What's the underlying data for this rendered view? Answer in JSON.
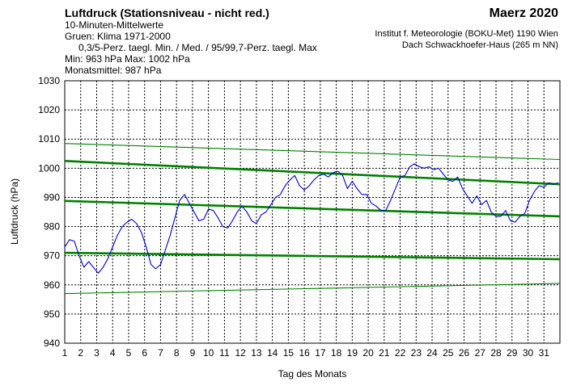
{
  "header": {
    "title": "Luftdruck (Stationsniveau - nicht red.)",
    "month": "Maerz 2020",
    "line2": "10-Minuten-Mittelwerte",
    "line3": "Gruen: Klima 1971-2000",
    "line4": "0,3/5-Perz. taegl. Min. / Med. / 95/99,7-Perz. taegl. Max",
    "minmax": "Min:  963 hPa   Max: 1002 hPa",
    "monthly_mean": "Monatsmittel:  987 hPa",
    "institute_line1": "Institut f. Meteorologie (BOKU-Met) 1190 Wien",
    "institute_line2": "Dach Schwackhoefer-Haus (265 m NN)"
  },
  "chart_data": {
    "type": "line",
    "xlabel": "Tag des Monats",
    "ylabel": "Luftdruck (hPa)",
    "xlim": [
      1,
      32
    ],
    "ylim": [
      940,
      1030
    ],
    "x_ticks": [
      "1",
      "2",
      "3",
      "4",
      "5",
      "6",
      "7",
      "8",
      "9",
      "10",
      "11",
      "12",
      "13",
      "14",
      "15",
      "16",
      "17",
      "18",
      "19",
      "20",
      "21",
      "22",
      "23",
      "24",
      "25",
      "26",
      "27",
      "28",
      "29",
      "30",
      "31"
    ],
    "y_ticks": [
      940,
      950,
      960,
      970,
      980,
      990,
      1000,
      1010,
      1020,
      1030
    ],
    "grid": true,
    "colors": {
      "measured": "#0000c0",
      "climate": "#008000"
    },
    "climate_series": [
      {
        "x": [
          1,
          32
        ],
        "y": [
          1008.5,
          1003.0
        ],
        "width": "thin"
      },
      {
        "x": [
          1,
          32
        ],
        "y": [
          1002.5,
          994.5
        ],
        "width": "thick"
      },
      {
        "x": [
          1,
          32
        ],
        "y": [
          988.8,
          983.5
        ],
        "width": "thick"
      },
      {
        "x": [
          1,
          32
        ],
        "y": [
          971.0,
          968.8
        ],
        "width": "thick"
      },
      {
        "x": [
          1,
          32
        ],
        "y": [
          957.0,
          960.5
        ],
        "width": "thin"
      }
    ],
    "measured_series": {
      "x": [
        1.0,
        1.3,
        1.6,
        1.9,
        2.2,
        2.5,
        2.8,
        3.1,
        3.4,
        3.7,
        4.0,
        4.3,
        4.6,
        4.9,
        5.2,
        5.5,
        5.8,
        6.1,
        6.4,
        6.7,
        7.0,
        7.3,
        7.6,
        7.9,
        8.2,
        8.5,
        8.8,
        9.1,
        9.4,
        9.7,
        10.0,
        10.3,
        10.6,
        10.9,
        11.2,
        11.5,
        11.8,
        12.1,
        12.4,
        12.7,
        13.0,
        13.3,
        13.6,
        13.9,
        14.2,
        14.5,
        14.8,
        15.1,
        15.4,
        15.7,
        16.0,
        16.3,
        16.6,
        16.9,
        17.2,
        17.5,
        17.8,
        18.1,
        18.4,
        18.7,
        19.0,
        19.3,
        19.6,
        19.9,
        20.2,
        20.5,
        20.8,
        21.1,
        21.4,
        21.7,
        22.0,
        22.3,
        22.6,
        22.9,
        23.2,
        23.5,
        23.8,
        24.1,
        24.4,
        24.7,
        25.0,
        25.3,
        25.6,
        25.9,
        26.2,
        26.5,
        26.8,
        27.1,
        27.4,
        27.7,
        28.0,
        28.3,
        28.6,
        28.9,
        29.2,
        29.5,
        29.8,
        30.1,
        30.4,
        30.7,
        31.0,
        31.3,
        31.6,
        31.9
      ],
      "y": [
        973.0,
        975.5,
        975.0,
        970.0,
        966.0,
        968.0,
        966.0,
        964.0,
        966.0,
        969.0,
        973.0,
        977.0,
        980.0,
        981.5,
        982.5,
        981.0,
        978.0,
        973.0,
        967.0,
        965.5,
        967.0,
        972.0,
        977.0,
        983.0,
        989.0,
        991.0,
        988.0,
        985.0,
        982.0,
        982.5,
        986.0,
        985.5,
        983.0,
        980.0,
        979.5,
        982.0,
        985.0,
        987.0,
        985.0,
        982.0,
        981.0,
        984.0,
        985.0,
        987.5,
        990.0,
        991.0,
        994.0,
        996.0,
        997.5,
        994.0,
        992.5,
        994.0,
        996.0,
        997.5,
        998.0,
        997.0,
        998.5,
        999.0,
        997.5,
        993.0,
        995.5,
        993.0,
        991.0,
        991.0,
        988.0,
        987.0,
        985.5,
        985.5,
        989.0,
        993.0,
        997.0,
        997.5,
        1000.5,
        1001.5,
        1000.5,
        1000.0,
        1000.5,
        999.5,
        1000.0,
        998.0,
        996.0,
        995.5,
        997.0,
        993.0,
        990.5,
        988.0,
        990.5,
        987.5,
        989.0,
        985.0,
        983.5,
        983.5,
        985.5,
        982.0,
        981.5,
        983.5,
        984.5,
        989.0,
        992.0,
        994.0,
        993.5,
        995.0,
        994.5,
        995.0
      ]
    }
  }
}
